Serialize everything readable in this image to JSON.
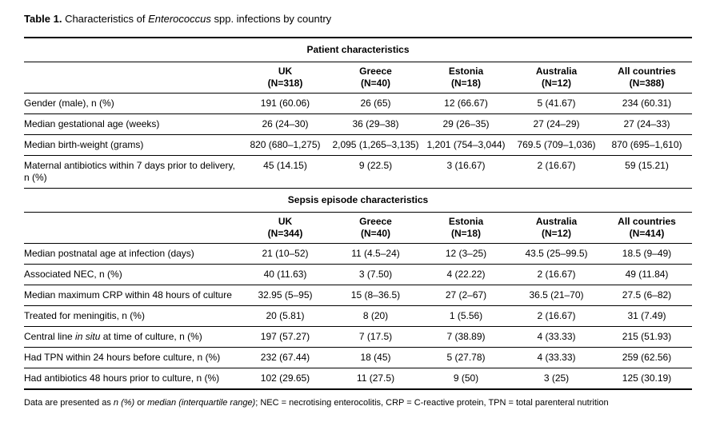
{
  "title": {
    "bold": "Table 1.",
    "pre_italic": " Characteristics of ",
    "italic": "Enterococcus",
    "post_italic": " spp. infections by country"
  },
  "patient": {
    "section_header": "Patient characteristics",
    "columns": [
      {
        "name": "UK",
        "n": "(N=318)"
      },
      {
        "name": "Greece",
        "n": "(N=40)"
      },
      {
        "name": "Estonia",
        "n": "(N=18)"
      },
      {
        "name": "Australia",
        "n": "(N=12)"
      },
      {
        "name": "All countries",
        "n": "(N=388)"
      }
    ],
    "rows": [
      {
        "label": "Gender (male), n (%)",
        "values": [
          "191 (60.06)",
          "26 (65)",
          "12 (66.67)",
          "5 (41.67)",
          "234 (60.31)"
        ]
      },
      {
        "label": "Median gestational age (weeks)",
        "values": [
          "26 (24–30)",
          "36 (29–38)",
          "29 (26–35)",
          "27 (24–29)",
          "27 (24–33)"
        ]
      },
      {
        "label": "Median birth-weight (grams)",
        "values": [
          "820 (680–1,275)",
          "2,095 (1,265–3,135)",
          "1,201 (754–3,044)",
          "769.5 (709–1,036)",
          "870 (695–1,610)"
        ]
      },
      {
        "label": "Maternal antibiotics within 7 days prior to delivery, n (%)",
        "values": [
          "45 (14.15)",
          "9 (22.5)",
          "3 (16.67)",
          "2 (16.67)",
          "59 (15.21)"
        ]
      }
    ]
  },
  "sepsis": {
    "section_header": "Sepsis episode characteristics",
    "columns": [
      {
        "name": "UK",
        "n": "(N=344)"
      },
      {
        "name": "Greece",
        "n": "(N=40)"
      },
      {
        "name": "Estonia",
        "n": "(N=18)"
      },
      {
        "name": "Australia",
        "n": "(N=12)"
      },
      {
        "name": "All countries",
        "n": "(N=414)"
      }
    ],
    "rows": [
      {
        "label": "Median postnatal age at infection (days)",
        "values": [
          "21 (10–52)",
          "11 (4.5–24)",
          "12 (3–25)",
          "43.5 (25–99.5)",
          "18.5 (9–49)"
        ]
      },
      {
        "label": "Associated NEC, n (%)",
        "values": [
          "40 (11.63)",
          "3 (7.50)",
          "4 (22.22)",
          "2 (16.67)",
          "49 (11.84)"
        ]
      },
      {
        "label": "Median maximum CRP within 48 hours of culture",
        "values": [
          "32.95 (5–95)",
          "15 (8–36.5)",
          "27 (2–67)",
          "36.5 (21–70)",
          "27.5 (6–82)"
        ]
      },
      {
        "label": "Treated for meningitis, n (%)",
        "values": [
          "20 (5.81)",
          "8 (20)",
          "1 (5.56)",
          "2 (16.67)",
          "31 (7.49)"
        ]
      },
      {
        "label_pre": "Central line ",
        "label_italic": "in situ",
        "label_post": " at time of culture, n (%)",
        "values": [
          "197 (57.27)",
          "7 (17.5)",
          "7 (38.89)",
          "4 (33.33)",
          "215 (51.93)"
        ]
      },
      {
        "label": "Had TPN within 24 hours before culture, n (%)",
        "values": [
          "232 (67.44)",
          "18 (45)",
          "5 (27.78)",
          "4 (33.33)",
          "259 (62.56)"
        ]
      },
      {
        "label": "Had antibiotics 48 hours prior to culture, n (%)",
        "values": [
          "102 (29.65)",
          "11 (27.5)",
          "9 (50)",
          "3 (25)",
          "125 (30.19)"
        ]
      }
    ]
  },
  "footnote": {
    "pre": "Data are presented as ",
    "italic1": "n (%)",
    "mid": " or ",
    "italic2": "median (interquartile range)",
    "post": "; NEC = necrotising enterocolitis, CRP = C-reactive protein, TPN = total parenteral nutrition"
  }
}
